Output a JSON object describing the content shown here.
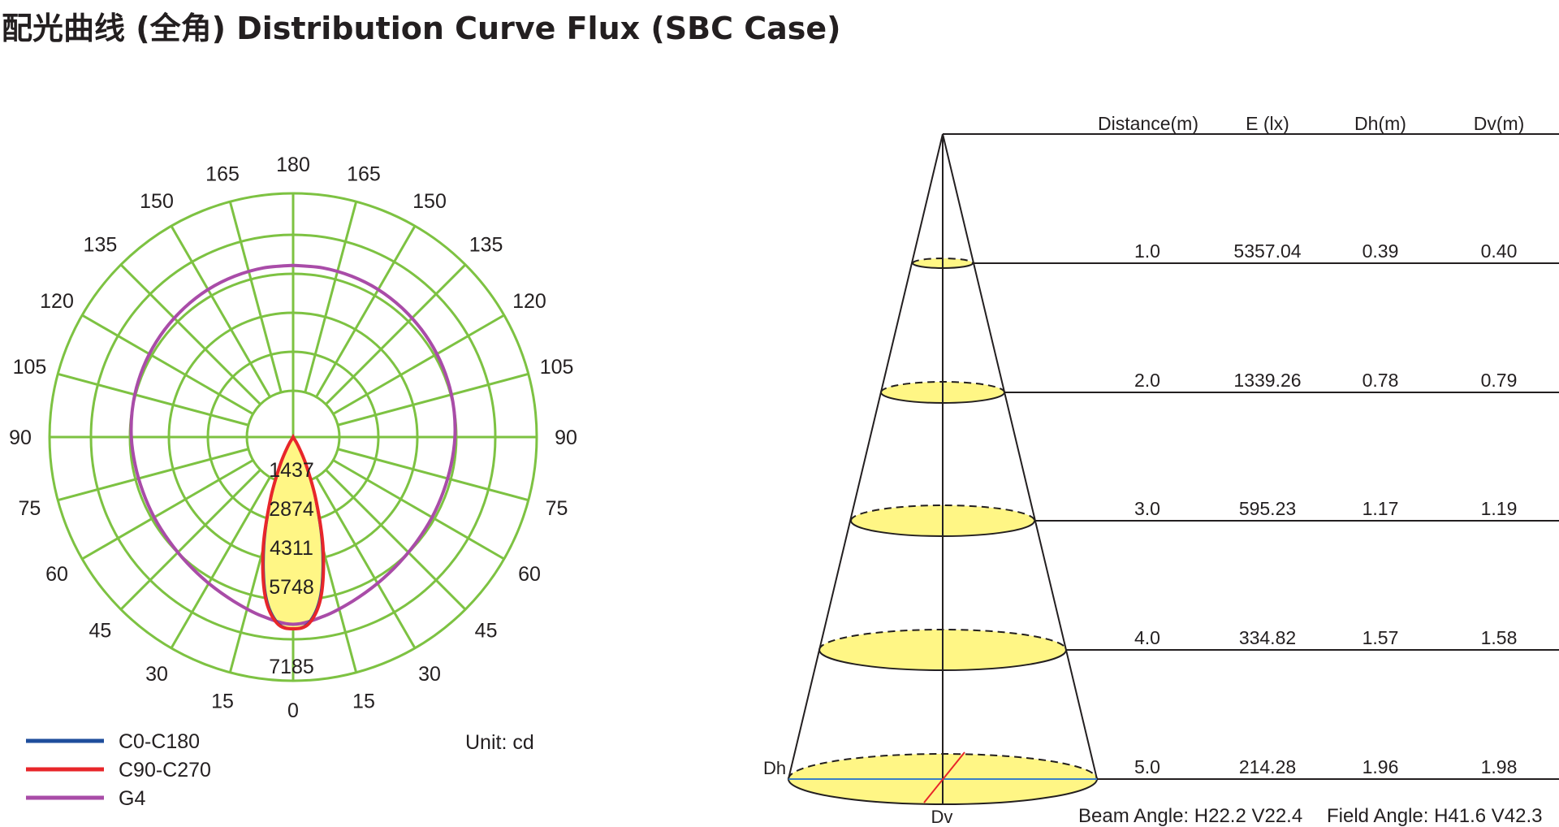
{
  "title": "配光曲线 (全角) Distribution Curve Flux (SBC Case)",
  "colors": {
    "grid": "#7dc242",
    "c0": "#1f4e9c",
    "c90": "#e8262a",
    "g4": "#a94ca8",
    "fill": "#fff685",
    "text": "#231f20"
  },
  "chart_data": [
    {
      "type": "polar",
      "unit_label": "Unit: cd",
      "angle_labels_left": [
        "0",
        "15",
        "30",
        "45",
        "60",
        "75",
        "90",
        "105",
        "120",
        "135",
        "150",
        "165",
        "180"
      ],
      "angle_labels_right": [
        "15",
        "30",
        "45",
        "60",
        "75",
        "90",
        "105",
        "120",
        "135",
        "150",
        "165"
      ],
      "radial_ticks": [
        "1437",
        "2874",
        "4311",
        "5748",
        "7185"
      ],
      "radial_max": 7185,
      "legend": [
        {
          "name": "C0-C180",
          "color_key": "c0"
        },
        {
          "name": "C90-C270",
          "color_key": "c90"
        },
        {
          "name": "G4",
          "color_key": "g4"
        }
      ],
      "series": [
        {
          "name": "C0-C180",
          "angles_deg": [
            0,
            5,
            10,
            15,
            20,
            25,
            30,
            40
          ],
          "values": [
            7185,
            6950,
            5950,
            4200,
            2400,
            1100,
            350,
            0
          ]
        },
        {
          "name": "C90-C270",
          "angles_deg": [
            0,
            5,
            10,
            15,
            20,
            25,
            30,
            40
          ],
          "values": [
            7185,
            7000,
            6050,
            4350,
            2500,
            1150,
            380,
            0
          ]
        },
        {
          "name": "G4",
          "angles_deg": [
            0,
            10,
            20,
            30,
            40,
            50,
            60,
            70,
            80,
            90,
            100,
            110,
            120,
            130,
            140,
            150,
            160,
            170,
            180
          ],
          "values": [
            6650,
            6450,
            6200,
            6000,
            5850,
            5750,
            5700,
            5680,
            5700,
            5750,
            5800,
            5850,
            5900,
            5950,
            6000,
            6050,
            6080,
            6100,
            6100
          ]
        }
      ]
    },
    {
      "type": "table",
      "columns": [
        "Distance(m)",
        "E (lx)",
        "Dh(m)",
        "Dv(m)"
      ],
      "rows": [
        [
          "1.0",
          "5357.04",
          "0.39",
          "0.40"
        ],
        [
          "2.0",
          "1339.26",
          "0.78",
          "0.79"
        ],
        [
          "3.0",
          "595.23",
          "1.17",
          "1.19"
        ],
        [
          "4.0",
          "334.82",
          "1.57",
          "1.58"
        ],
        [
          "5.0",
          "214.28",
          "1.96",
          "1.98"
        ]
      ],
      "dh_label": "Dh",
      "dv_label": "Dv",
      "beam_angle": "Beam Angle: H22.2 V22.4",
      "field_angle": "Field Angle: H41.6 V42.3"
    }
  ]
}
